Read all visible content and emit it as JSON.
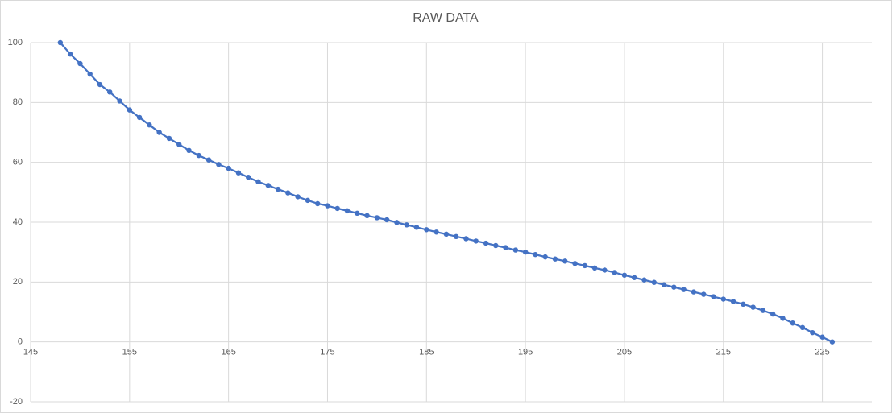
{
  "chart_data": {
    "type": "scatter-line",
    "title": "RAW DATA",
    "x": [
      148,
      149,
      150,
      151,
      152,
      153,
      154,
      155,
      156,
      157,
      158,
      159,
      160,
      161,
      162,
      163,
      164,
      165,
      166,
      167,
      168,
      169,
      170,
      171,
      172,
      173,
      174,
      175,
      176,
      177,
      178,
      179,
      180,
      181,
      182,
      183,
      184,
      185,
      186,
      187,
      188,
      189,
      190,
      191,
      192,
      193,
      194,
      195,
      196,
      197,
      198,
      199,
      200,
      201,
      202,
      203,
      204,
      205,
      206,
      207,
      208,
      209,
      210,
      211,
      212,
      213,
      214,
      215,
      216,
      217,
      218,
      219,
      220,
      221,
      222,
      223,
      224,
      225,
      226
    ],
    "values": [
      100,
      96.2,
      93,
      89.5,
      86,
      83.5,
      80.5,
      77.5,
      75,
      72.5,
      70,
      68,
      66,
      64,
      62.3,
      60.8,
      59.3,
      58,
      56.5,
      55,
      53.5,
      52.3,
      51,
      49.8,
      48.5,
      47.3,
      46.2,
      45.5,
      44.6,
      43.8,
      43,
      42.2,
      41.5,
      40.8,
      39.9,
      39.1,
      38.3,
      37.5,
      36.7,
      36,
      35.2,
      34.5,
      33.7,
      33,
      32.2,
      31.5,
      30.7,
      30,
      29.2,
      28.4,
      27.7,
      27,
      26.2,
      25.5,
      24.7,
      24,
      23.2,
      22.3,
      21.5,
      20.7,
      19.9,
      19.1,
      18.3,
      17.5,
      16.7,
      15.9,
      15.1,
      14.3,
      13.5,
      12.6,
      11.6,
      10.5,
      9.3,
      7.9,
      6.3,
      4.8,
      3.1,
      1.6,
      0
    ],
    "color": "#4472c4",
    "xlim": [
      145,
      230
    ],
    "xticks": [
      145,
      155,
      165,
      175,
      185,
      195,
      205,
      215,
      225
    ],
    "ylim": [
      -20,
      100
    ],
    "yticks": [
      -20,
      0,
      20,
      40,
      60,
      80,
      100
    ],
    "grid": true
  }
}
